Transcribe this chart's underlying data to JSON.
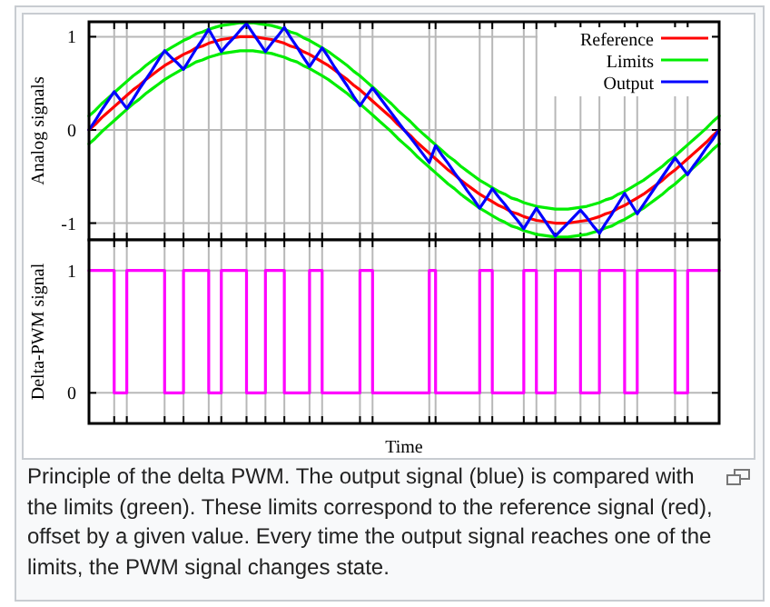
{
  "chart_data": [
    {
      "type": "line",
      "ylabel": "Analog signals",
      "ylim": [
        -1.18,
        1.16
      ],
      "yticks": [
        -1,
        0,
        1
      ],
      "tick_labels": "y",
      "grid": true,
      "legend": "top right",
      "categories": [
        null,
        null,
        null,
        null,
        null,
        null,
        null,
        null,
        null,
        null,
        null,
        null,
        null,
        null,
        null,
        null,
        null,
        null,
        null,
        null,
        null,
        null,
        null,
        null,
        null,
        null,
        null,
        null,
        null,
        null,
        null,
        null,
        null,
        null,
        null,
        null,
        null,
        null,
        null,
        null,
        null,
        null,
        null,
        null,
        null,
        null,
        null,
        null,
        null,
        null,
        null,
        null,
        null,
        null,
        null,
        null,
        null,
        null,
        null,
        null,
        null,
        null,
        null,
        null,
        null,
        null,
        null,
        null,
        null,
        null,
        null,
        null,
        null,
        null,
        null,
        null,
        null,
        null,
        null,
        null,
        null,
        null,
        null,
        null,
        null,
        null,
        null,
        null,
        null,
        null,
        null,
        null,
        null,
        null,
        null,
        null,
        null,
        null,
        null,
        null,
        null
      ],
      "series": [
        {
          "name": "Reference",
          "color": "#ff0000",
          "values": [
            0,
            0.06,
            0.13,
            0.19,
            0.25,
            0.31,
            0.37,
            0.43,
            0.48,
            0.54,
            0.59,
            0.64,
            0.69,
            0.73,
            0.77,
            0.81,
            0.84,
            0.88,
            0.9,
            0.93,
            0.95,
            0.97,
            0.98,
            0.99,
            1,
            1,
            1,
            0.99,
            0.98,
            0.97,
            0.95,
            0.93,
            0.9,
            0.88,
            0.84,
            0.81,
            0.77,
            0.73,
            0.69,
            0.64,
            0.59,
            0.54,
            0.48,
            0.43,
            0.37,
            0.31,
            0.25,
            0.19,
            0.13,
            0.06,
            0,
            -0.06,
            -0.13,
            -0.19,
            -0.25,
            -0.31,
            -0.37,
            -0.43,
            -0.48,
            -0.54,
            -0.59,
            -0.64,
            -0.69,
            -0.73,
            -0.77,
            -0.81,
            -0.84,
            -0.88,
            -0.9,
            -0.93,
            -0.95,
            -0.97,
            -0.98,
            -0.99,
            -1,
            -1,
            -1,
            -0.99,
            -0.98,
            -0.97,
            -0.95,
            -0.93,
            -0.9,
            -0.88,
            -0.84,
            -0.81,
            -0.77,
            -0.73,
            -0.69,
            -0.64,
            -0.59,
            -0.54,
            -0.48,
            -0.43,
            -0.37,
            -0.31,
            -0.25,
            -0.19,
            -0.13,
            -0.06,
            0
          ]
        },
        {
          "name": "Limits",
          "color": "#00ee00",
          "values": [
            0.15,
            0.21,
            0.28,
            0.34,
            0.4,
            0.46,
            0.52,
            0.58,
            0.63,
            0.69,
            0.74,
            0.79,
            0.84,
            0.88,
            0.92,
            0.96,
            0.99,
            1.03,
            1.05,
            1.08,
            1.1,
            1.12,
            1.13,
            1.14,
            1.15,
            1.15,
            1.15,
            1.14,
            1.13,
            1.12,
            1.1,
            1.08,
            1.05,
            1.03,
            0.99,
            0.96,
            0.92,
            0.88,
            0.84,
            0.79,
            0.74,
            0.69,
            0.63,
            0.58,
            0.52,
            0.46,
            0.4,
            0.34,
            0.28,
            0.21,
            0.15,
            0.09,
            0.02,
            -0.04,
            -0.1,
            -0.16,
            -0.22,
            -0.28,
            -0.33,
            -0.39,
            -0.44,
            -0.49,
            -0.54,
            -0.58,
            -0.62,
            -0.66,
            -0.69,
            -0.73,
            -0.75,
            -0.78,
            -0.8,
            -0.82,
            -0.83,
            -0.84,
            -0.85,
            -0.85,
            -0.85,
            -0.84,
            -0.83,
            -0.82,
            -0.8,
            -0.78,
            -0.75,
            -0.73,
            -0.69,
            -0.66,
            -0.62,
            -0.58,
            -0.54,
            -0.49,
            -0.44,
            -0.39,
            -0.33,
            -0.28,
            -0.22,
            -0.16,
            -0.1,
            -0.04,
            0.02,
            0.09,
            0.15
          ]
        },
        {
          "color": "#00ee00",
          "values": [
            -0.15,
            -0.09,
            -0.02,
            0.04,
            0.1,
            0.16,
            0.22,
            0.28,
            0.33,
            0.39,
            0.44,
            0.49,
            0.54,
            0.58,
            0.62,
            0.66,
            0.69,
            0.73,
            0.75,
            0.78,
            0.8,
            0.82,
            0.83,
            0.84,
            0.85,
            0.85,
            0.85,
            0.84,
            0.83,
            0.82,
            0.8,
            0.78,
            0.75,
            0.73,
            0.69,
            0.66,
            0.62,
            0.58,
            0.54,
            0.49,
            0.44,
            0.39,
            0.33,
            0.28,
            0.22,
            0.16,
            0.1,
            0.04,
            -0.02,
            -0.09,
            -0.15,
            -0.21,
            -0.28,
            -0.34,
            -0.4,
            -0.46,
            -0.52,
            -0.58,
            -0.63,
            -0.69,
            -0.74,
            -0.79,
            -0.84,
            -0.88,
            -0.92,
            -0.96,
            -0.99,
            -1.03,
            -1.05,
            -1.08,
            -1.1,
            -1.12,
            -1.13,
            -1.14,
            -1.15,
            -1.15,
            -1.15,
            -1.14,
            -1.13,
            -1.12,
            -1.1,
            -1.08,
            -1.05,
            -1.03,
            -0.99,
            -0.96,
            -0.92,
            -0.88,
            -0.84,
            -0.79,
            -0.74,
            -0.69,
            -0.63,
            -0.58,
            -0.52,
            -0.46,
            -0.4,
            -0.34,
            -0.28,
            -0.21,
            -0.15
          ]
        },
        {
          "name": "Output",
          "color": "#0000ff",
          "values": [
            0,
            0.1,
            0.21,
            0.31,
            0.41,
            0.32,
            0.23,
            0.33,
            0.44,
            0.54,
            0.64,
            0.75,
            0.85,
            0.78,
            0.72,
            0.65,
            0.76,
            0.87,
            0.97,
            1.08,
            0.96,
            0.84,
            0.92,
            0.99,
            1.07,
            1.14,
            1.04,
            0.94,
            0.84,
            0.93,
            1.01,
            1.1,
            0.99,
            0.89,
            0.78,
            0.68,
            0.78,
            0.88,
            0.78,
            0.67,
            0.57,
            0.47,
            0.36,
            0.26,
            0.36,
            0.45,
            0.36,
            0.27,
            0.18,
            0.09,
            0,
            -0.08,
            -0.17,
            -0.26,
            -0.35,
            -0.17,
            -0.27,
            -0.36,
            -0.46,
            -0.55,
            -0.65,
            -0.74,
            -0.84,
            -0.74,
            -0.63,
            -0.72,
            -0.8,
            -0.89,
            -0.97,
            -1.06,
            -0.95,
            -0.84,
            -0.94,
            -1.04,
            -1.14,
            -1.07,
            -1,
            -0.93,
            -0.86,
            -0.94,
            -1.03,
            -1.11,
            -1,
            -0.9,
            -0.79,
            -0.68,
            -0.79,
            -0.9,
            -0.8,
            -0.7,
            -0.6,
            -0.5,
            -0.4,
            -0.3,
            -0.39,
            -0.48,
            -0.38,
            -0.29,
            -0.19,
            -0.1,
            0
          ]
        }
      ]
    },
    {
      "type": "step",
      "ylabel": "Delta-PWM signal",
      "xlabel": "Time",
      "ylim": [
        -0.25,
        1.25
      ],
      "yticks": [
        0,
        1
      ],
      "tick_labels": "y",
      "grid": true,
      "categories": [
        null,
        null,
        null,
        null,
        null,
        null,
        null,
        null,
        null,
        null,
        null,
        null,
        null,
        null,
        null,
        null,
        null,
        null,
        null,
        null,
        null,
        null,
        null,
        null,
        null,
        null,
        null,
        null,
        null,
        null,
        null,
        null,
        null,
        null,
        null,
        null,
        null,
        null,
        null,
        null,
        null,
        null,
        null,
        null,
        null,
        null,
        null,
        null,
        null,
        null,
        null,
        null,
        null,
        null,
        null,
        null,
        null,
        null,
        null,
        null,
        null,
        null,
        null,
        null,
        null,
        null,
        null,
        null,
        null,
        null,
        null,
        null,
        null,
        null,
        null,
        null,
        null,
        null,
        null,
        null,
        null,
        null,
        null,
        null,
        null,
        null,
        null,
        null,
        null,
        null,
        null,
        null,
        null,
        null,
        null,
        null,
        null,
        null,
        null,
        null,
        null
      ],
      "series": [
        {
          "color": "#ff00ff",
          "values": [
            1,
            1,
            1,
            1,
            0,
            0,
            1,
            1,
            1,
            1,
            1,
            1,
            0,
            0,
            0,
            1,
            1,
            1,
            1,
            0,
            0,
            1,
            1,
            1,
            1,
            0,
            0,
            0,
            1,
            1,
            1,
            0,
            0,
            0,
            0,
            1,
            1,
            0,
            0,
            0,
            0,
            0,
            0,
            1,
            1,
            0,
            0,
            0,
            0,
            0,
            0,
            0,
            0,
            0,
            1,
            0,
            0,
            0,
            0,
            0,
            0,
            0,
            1,
            1,
            0,
            0,
            0,
            0,
            0,
            1,
            1,
            0,
            0,
            0,
            1,
            1,
            1,
            1,
            0,
            0,
            0,
            1,
            1,
            1,
            1,
            0,
            0,
            1,
            1,
            1,
            1,
            1,
            1,
            0,
            0,
            1,
            1,
            1,
            1,
            1,
            1
          ]
        }
      ],
      "annotations": [
        "Principle of the delta PWM. The output signal (blue) is compared with the limits (green). These limits correspond to the reference signal (red), offset by a given value. Every time the output signal reaches one of the limits, the PWM signal changes state."
      ]
    }
  ]
}
